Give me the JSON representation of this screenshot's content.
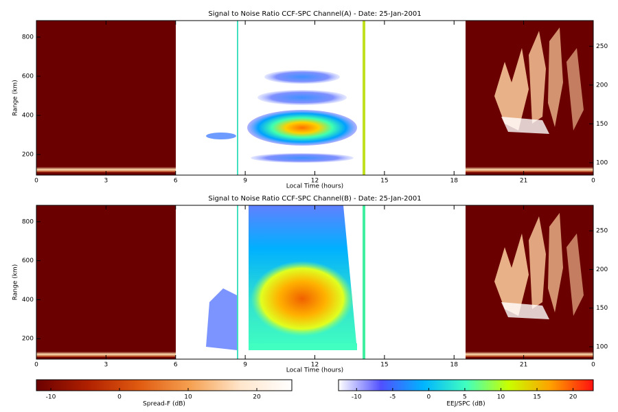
{
  "chart_data": [
    {
      "type": "heatmap",
      "title": "Signal to Noise Ratio CCF-SPC Channel(A) - Date: 25-Jan-2001",
      "xlabel": "Local Time (hours)",
      "ylabel": "Range (km)",
      "xlim": [
        0,
        24
      ],
      "xticks": [
        0,
        3,
        6,
        9,
        12,
        15,
        18,
        21,
        {
          "value": 24,
          "label": "0"
        }
      ],
      "ylim": [
        95,
        884
      ],
      "yticks": [
        200,
        400,
        600,
        800
      ],
      "y2lim": [
        84,
        283
      ],
      "y2ticks": [
        100,
        150,
        200,
        250
      ]
    },
    {
      "type": "heatmap",
      "title": "Signal to Noise Ratio CCF-SPC Channel(B) - Date: 25-Jan-2001",
      "xlabel": "Local Time (hours)",
      "ylabel": "Range (km)",
      "xlim": [
        0,
        24
      ],
      "xticks": [
        0,
        3,
        6,
        9,
        12,
        15,
        18,
        21,
        {
          "value": 24,
          "label": "0"
        }
      ],
      "ylim": [
        95,
        884
      ],
      "yticks": [
        200,
        400,
        600,
        800
      ],
      "y2lim": [
        84,
        283
      ],
      "y2ticks": [
        100,
        150,
        200,
        250
      ]
    }
  ],
  "colorbars": [
    {
      "label": "Spread-F (dB)",
      "lim": [
        -12.1,
        25.1
      ],
      "ticks": [
        -10,
        0,
        10,
        20
      ],
      "colors": [
        "#6b0000",
        "#b02000",
        "#e05a10",
        "#f5a050",
        "#ffe6cc",
        "#ffffff"
      ]
    },
    {
      "label": "EEJ/SPC (dB)",
      "lim": [
        -12.5,
        22.8
      ],
      "ticks": [
        -10,
        -5,
        0,
        5,
        10,
        15,
        20
      ],
      "colors": [
        "#ffffff",
        "#5050ff",
        "#00b4ff",
        "#40ffc0",
        "#c8ff00",
        "#ffa000",
        "#ff1010"
      ]
    }
  ]
}
